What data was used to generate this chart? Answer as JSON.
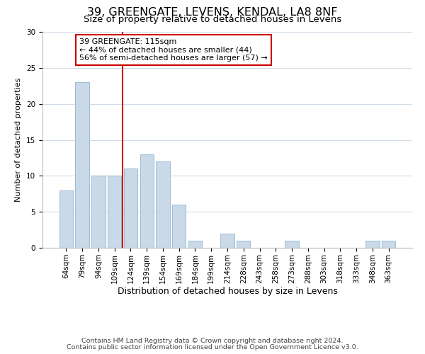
{
  "title": "39, GREENGATE, LEVENS, KENDAL, LA8 8NF",
  "subtitle": "Size of property relative to detached houses in Levens",
  "xlabel": "Distribution of detached houses by size in Levens",
  "ylabel": "Number of detached properties",
  "bar_labels": [
    "64sqm",
    "79sqm",
    "94sqm",
    "109sqm",
    "124sqm",
    "139sqm",
    "154sqm",
    "169sqm",
    "184sqm",
    "199sqm",
    "214sqm",
    "228sqm",
    "243sqm",
    "258sqm",
    "273sqm",
    "288sqm",
    "303sqm",
    "318sqm",
    "333sqm",
    "348sqm",
    "363sqm"
  ],
  "bar_heights": [
    8,
    23,
    10,
    10,
    11,
    13,
    12,
    6,
    1,
    0,
    2,
    1,
    0,
    0,
    1,
    0,
    0,
    0,
    0,
    1,
    1
  ],
  "bar_color": "#c9d9e8",
  "bar_edge_color": "#a0bcd0",
  "vline_x": 3.5,
  "vline_color": "#cc0000",
  "annotation_title": "39 GREENGATE: 115sqm",
  "annotation_line1": "← 44% of detached houses are smaller (44)",
  "annotation_line2": "56% of semi-detached houses are larger (57) →",
  "annotation_box_color": "#ffffff",
  "annotation_box_edge": "#cc0000",
  "ylim": [
    0,
    30
  ],
  "yticks": [
    0,
    5,
    10,
    15,
    20,
    25,
    30
  ],
  "footer1": "Contains HM Land Registry data © Crown copyright and database right 2024.",
  "footer2": "Contains public sector information licensed under the Open Government Licence v3.0.",
  "bg_color": "#ffffff",
  "grid_color": "#d0dce8",
  "title_fontsize": 11.5,
  "subtitle_fontsize": 9.5,
  "xlabel_fontsize": 9,
  "ylabel_fontsize": 8,
  "tick_fontsize": 7.5,
  "footer_fontsize": 6.8,
  "annotation_fontsize": 8
}
